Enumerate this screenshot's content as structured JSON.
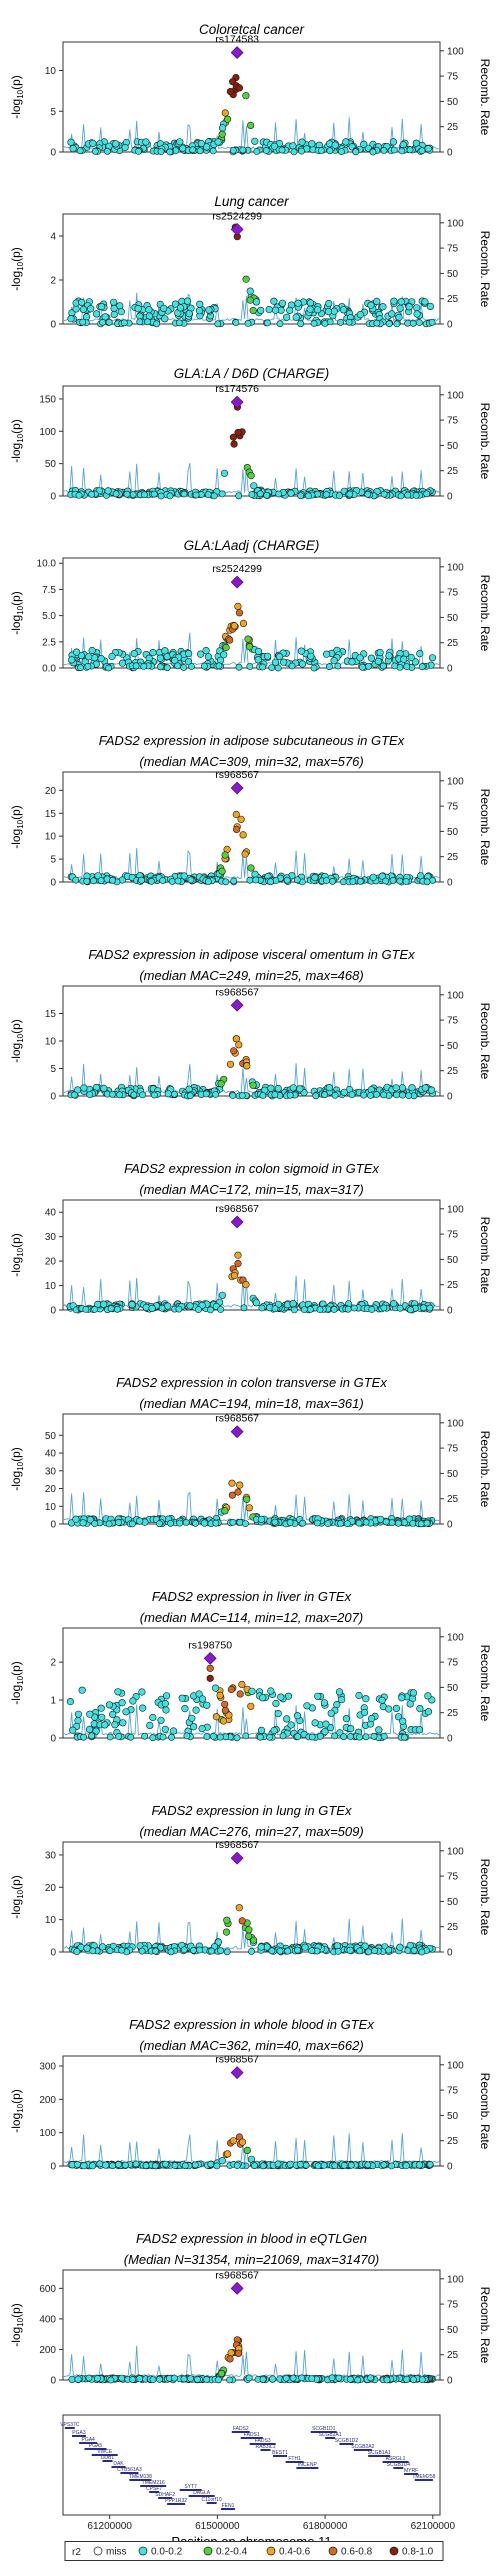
{
  "colors": {
    "miss": "#ffffff",
    "r2_0_0.2": "#3fe3e3",
    "r2_0.2_0.4": "#52d23c",
    "r2_0.4_0.6": "#f3a41c",
    "r2_0.6_0.8": "#d9671e",
    "r2_0.8_1.0": "#8b1f0a",
    "lead": "#8a17d2",
    "recomb": "#56a6de"
  },
  "chart_data": {
    "type": "scatter",
    "x_axis": {
      "label": "Position on chromosome 11",
      "range": [
        61070000,
        62120000
      ],
      "ticks": [
        "61200000",
        "61500000",
        "61800000",
        "62100000"
      ]
    },
    "y_axis": {
      "label": "-log10(p)",
      "label_right": "Recomb. Rate",
      "right_ticks": [
        "0",
        "25",
        "50",
        "75",
        "100"
      ]
    },
    "legend": {
      "title": "r2",
      "items": [
        "miss",
        "0.0-0.2",
        "0.2-0.4",
        "0.4-0.6",
        "0.6-0.8",
        "0.8-1.0"
      ],
      "placement": "bottom"
    },
    "panels": [
      {
        "title_lines": [
          "Coloretcal cancer"
        ],
        "lead_snp": "rs174583",
        "lead_value": 12.2,
        "ylim": [
          0,
          13.5
        ],
        "yticks": [
          "0",
          "5",
          "10"
        ],
        "peak": 12,
        "bg": 1.2,
        "hits": "strong"
      },
      {
        "title_lines": [
          "Lung cancer"
        ],
        "lead_snp": "rs2524299",
        "lead_value": 4.3,
        "ylim": [
          0,
          5
        ],
        "yticks": [
          "0",
          "2",
          "4"
        ],
        "peak": 3.8,
        "bg": 1.0,
        "hits": "strong"
      },
      {
        "title_lines": [
          "GLA:LA / D6D (CHARGE)"
        ],
        "lead_snp": "rs174576",
        "lead_value": 145,
        "ylim": [
          0,
          170
        ],
        "yticks": [
          "0",
          "50",
          "100",
          "150"
        ],
        "peak": 130,
        "bg": 8,
        "hits": "strong"
      },
      {
        "title_lines": [
          "GLA:LAadj (CHARGE)"
        ],
        "lead_snp": "rs2524299",
        "lead_value": 8.2,
        "ylim": [
          0,
          10.5
        ],
        "yticks": [
          "0.0",
          "2.5",
          "5.0",
          "7.5",
          "10.0"
        ],
        "peak": 5.5,
        "bg": 1.6,
        "hits": "moderate"
      },
      {
        "title_lines": [
          "FADS2 expression in adipose subcutaneous in GTEx",
          "(median MAC=309, min=32, max=576)"
        ],
        "lead_snp": "rs968567",
        "lead_value": 20.5,
        "ylim": [
          0,
          24
        ],
        "yticks": [
          "0",
          "5",
          "10",
          "15",
          "20"
        ],
        "peak": 15,
        "bg": 1.3,
        "hits": "moderate"
      },
      {
        "title_lines": [
          "FADS2 expression in adipose visceral omentum in GTEx",
          "(median MAC=249, min=25, max=468)"
        ],
        "lead_snp": "rs968567",
        "lead_value": 16.5,
        "ylim": [
          0,
          20
        ],
        "yticks": [
          "0",
          "5",
          "10",
          "15"
        ],
        "peak": 11,
        "bg": 1.5,
        "hits": "moderate"
      },
      {
        "title_lines": [
          "FADS2 expression in colon sigmoid in GTEx",
          "(median MAC=172, min=15, max=317)"
        ],
        "lead_snp": "rs968567",
        "lead_value": 36,
        "ylim": [
          0,
          45
        ],
        "yticks": [
          "0",
          "10",
          "20",
          "30",
          "40"
        ],
        "peak": 20,
        "bg": 2.5,
        "hits": "moderate"
      },
      {
        "title_lines": [
          "FADS2 expression in colon transverse in GTEx",
          "(median MAC=194, min=18, max=361)"
        ],
        "lead_snp": "rs968567",
        "lead_value": 52,
        "ylim": [
          0,
          62
        ],
        "yticks": [
          "0",
          "10",
          "20",
          "30",
          "40",
          "50"
        ],
        "peak": 27,
        "bg": 3,
        "hits": "moderate"
      },
      {
        "title_lines": [
          "FADS2 expression in liver in GTEx",
          "(median MAC=114, min=12, max=207)"
        ],
        "lead_snp": "rs198750",
        "lead_value": 2.1,
        "ylim": [
          0,
          2.9
        ],
        "yticks": [
          "0",
          "1",
          "2"
        ],
        "peak": 1.6,
        "bg": 0.9,
        "hits": "liver"
      },
      {
        "title_lines": [
          "FADS2 expression in lung in GTEx",
          "(median MAC=276, min=27, max=509)"
        ],
        "lead_snp": "rs968567",
        "lead_value": 29,
        "ylim": [
          0,
          34
        ],
        "yticks": [
          "0",
          "10",
          "20",
          "30"
        ],
        "peak": 18,
        "bg": 2,
        "hits": "moderate"
      },
      {
        "title_lines": [
          "FADS2 expression in whole blood in GTEx",
          "(median MAC=362, min=40, max=662)"
        ],
        "lead_snp": "rs968567",
        "lead_value": 280,
        "ylim": [
          0,
          330
        ],
        "yticks": [
          "0",
          "100",
          "200",
          "300"
        ],
        "peak": 95,
        "bg": 5,
        "hits": "moderate"
      },
      {
        "title_lines": [
          "FADS2 expression in blood in eQTLGen",
          "(Median N=31354, min=21069, max=31470)"
        ],
        "lead_snp": "rs968567",
        "lead_value": 600,
        "ylim": [
          0,
          720
        ],
        "yticks": [
          "0",
          "200",
          "400",
          "600"
        ],
        "peak": 280,
        "bg": 12,
        "hits": "moderate"
      }
    ],
    "genes": [
      "VPS37C",
      "PGA3",
      "PGA4",
      "PGA5",
      "VWCE",
      "DDB1",
      "DAK",
      "CYB561A3",
      "TMEM138",
      "TMEM216",
      "CPSF7",
      "SDHAF2",
      "PPP1R32",
      "SYT7",
      "DAGLA",
      "C11orf10",
      "FEN1",
      "FADS2",
      "FADS1",
      "FADS3",
      "RAB3IL1",
      "BEST1",
      "FTH1",
      "INCENP",
      "SCGB1D1",
      "SCGB2A1",
      "SCGB1D2",
      "SCGB2A2",
      "SCGB1A1",
      "ASRGL1",
      "SCGB1D4",
      "MYRF",
      "TMEM258"
    ]
  }
}
